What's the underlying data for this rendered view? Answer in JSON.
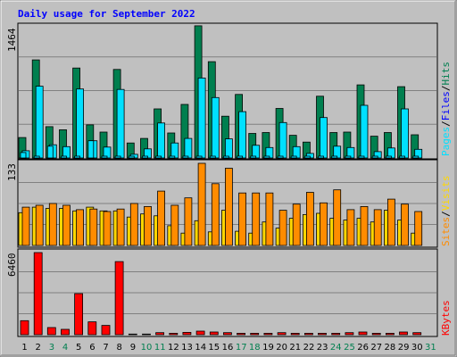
{
  "chart_data": {
    "type": "bar",
    "title": "Daily usage for September 2022",
    "categories": [
      "1",
      "2",
      "3",
      "4",
      "5",
      "6",
      "7",
      "8",
      "9",
      "10",
      "11",
      "12",
      "13",
      "14",
      "15",
      "16",
      "17",
      "18",
      "19",
      "20",
      "21",
      "22",
      "23",
      "24",
      "25",
      "26",
      "27",
      "28",
      "29",
      "30",
      "31"
    ],
    "weekend_days": [
      3,
      4,
      10,
      11,
      17,
      18,
      24,
      25,
      31
    ],
    "colors": {
      "title": "#0000ff",
      "background": "#c0c0c0",
      "grid": "#808080",
      "pages": "#007f4f",
      "files": "#00e0ff",
      "visits": "#ffd700",
      "sites": "#ff8c00",
      "kbytes": "#ff0000",
      "weekday_label": "#000000",
      "weekend_label": "#007f4f"
    },
    "panels": [
      {
        "max_label": "1464",
        "ymax": 1464,
        "legend": [
          {
            "text": "Hits",
            "color": "#007f4f"
          },
          {
            "text": "/",
            "color": "#000000"
          },
          {
            "text": "Files",
            "color": "#0000ff"
          },
          {
            "text": "/",
            "color": "#000000"
          },
          {
            "text": "Pages",
            "color": "#00e0ff"
          }
        ],
        "series": [
          {
            "name": "Hits",
            "color": "#007f4f",
            "values": [
              225,
              1080,
              345,
              310,
              990,
              365,
              285,
              975,
              165,
              215,
              540,
              275,
              590,
              1455,
              1060,
              460,
              700,
              270,
              280,
              545,
              250,
              175,
              680,
              280,
              285,
              805,
              240,
              280,
              785,
              255,
              0
            ]
          },
          {
            "name": "Files",
            "color": "#00e0ff",
            "values": [
              80,
              790,
              145,
              125,
              760,
              190,
              120,
              755,
              40,
              100,
              385,
              165,
              215,
              880,
              665,
              210,
              510,
              140,
              115,
              390,
              125,
              50,
              445,
              130,
              115,
              580,
              70,
              110,
              540,
              95,
              0
            ]
          },
          {
            "name": "Pages",
            "color": "#00e0ff",
            "values": [
              60,
              20,
              130,
              20,
              20,
              190,
              20,
              20,
              20,
              20,
              20,
              20,
              20,
              20,
              20,
              20,
              20,
              20,
              20,
              20,
              20,
              20,
              20,
              20,
              20,
              20,
              20,
              20,
              20,
              20,
              0
            ]
          }
        ]
      },
      {
        "max_label": "133",
        "ymax": 133,
        "legend": [
          {
            "text": "Visits",
            "color": "#ffd700"
          },
          {
            "text": "/",
            "color": "#000000"
          },
          {
            "text": "Sites",
            "color": "#ff8c00"
          }
        ],
        "series": [
          {
            "name": "Visits",
            "color": "#ffd700",
            "values": [
              53,
              62,
              60,
              60,
              56,
              62,
              56,
              56,
              46,
              51,
              48,
              32,
              20,
              40,
              22,
              57,
              23,
              20,
              38,
              28,
              44,
              50,
              52,
              44,
              41,
              44,
              38,
              57,
              41,
              20,
              0
            ]
          },
          {
            "name": "Sites",
            "color": "#ff8c00",
            "values": [
              62,
              65,
              68,
              65,
              58,
              59,
              55,
              59,
              68,
              63,
              88,
              65,
              77,
              133,
              100,
              125,
              85,
              85,
              85,
              57,
              67,
              86,
              69,
              90,
              58,
              63,
              58,
              75,
              67,
              55,
              0
            ]
          }
        ]
      },
      {
        "max_label": "6460",
        "ymax": 6460,
        "legend": [
          {
            "text": "KBytes",
            "color": "#ff0000"
          }
        ],
        "series": [
          {
            "name": "KBytes",
            "color": "#ff0000",
            "values": [
              1100,
              6460,
              560,
              420,
              3230,
              1010,
              730,
              5750,
              50,
              50,
              160,
              110,
              180,
              280,
              210,
              160,
              110,
              110,
              110,
              160,
              110,
              110,
              110,
              110,
              160,
              210,
              110,
              110,
              210,
              160,
              0
            ]
          }
        ]
      }
    ]
  }
}
